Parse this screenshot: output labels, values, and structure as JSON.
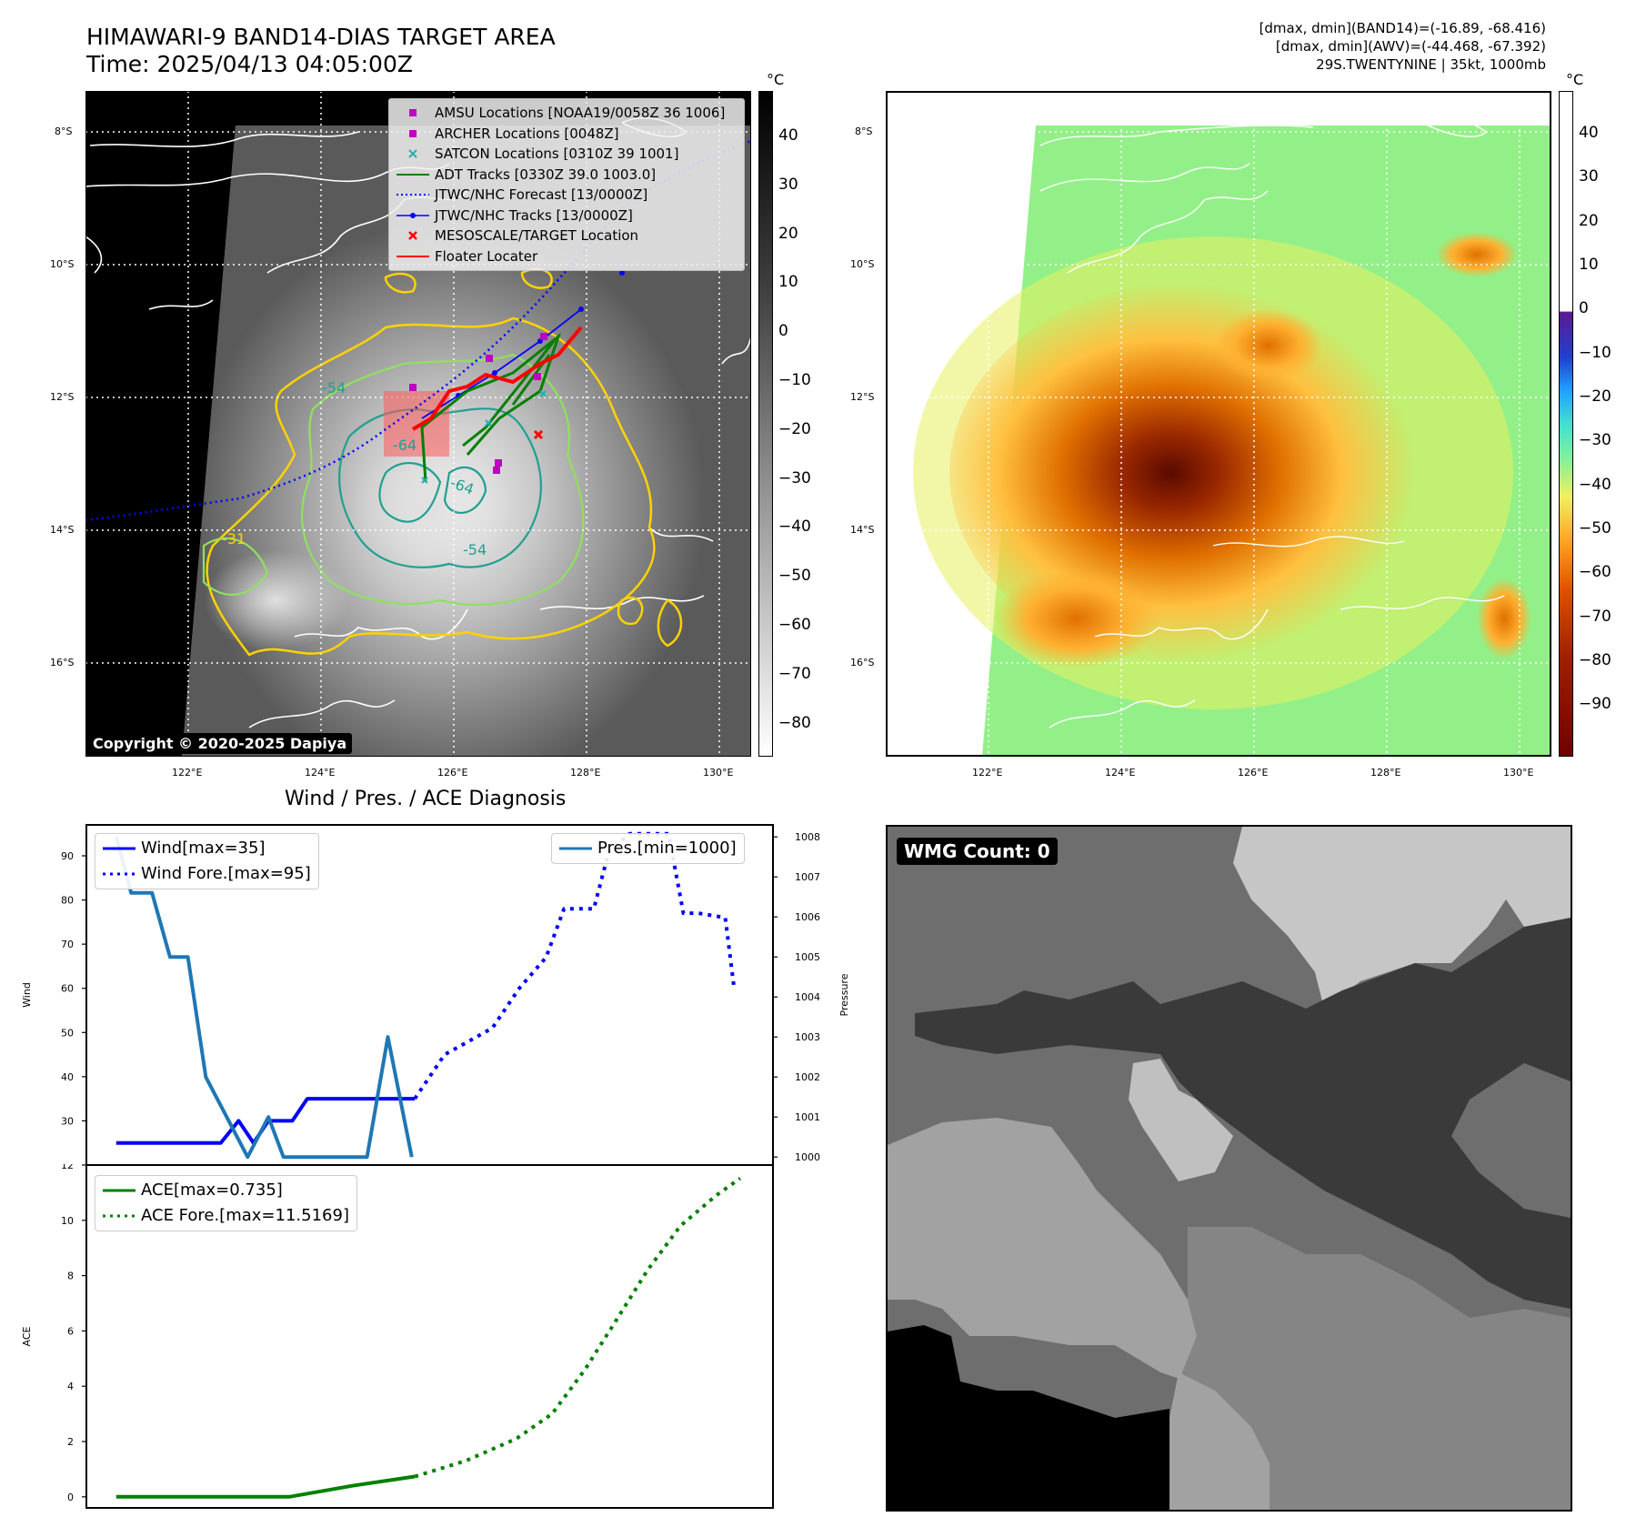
{
  "header": {
    "title_line1": "HIMAWARI-9 BAND14-DIAS TARGET AREA",
    "title_line2": "Time: 2025/04/13 04:05:00Z",
    "right_line1": "[dmax, dmin](BAND14)=(-16.89, -68.416)",
    "right_line2": "[dmax, dmin](AWV)=(-44.468, -67.392)",
    "right_line3": "29S.TWENTYNINE | 35kt, 1000mb"
  },
  "map": {
    "lat_labels": [
      "8°S",
      "10°S",
      "12°S",
      "14°S",
      "16°S"
    ],
    "lon_labels": [
      "122°E",
      "124°E",
      "126°E",
      "128°E",
      "130°E"
    ],
    "copyright": "Copyright © 2020-2025 Dapiya",
    "contour_labels": [
      "-54",
      "-64",
      "-64",
      "-54",
      "-31"
    ],
    "legend": [
      {
        "label": "AMSU Locations [NOAA19/0058Z 36 1006]",
        "symbol": "square",
        "color": "#c000c0"
      },
      {
        "label": "ARCHER Locations [0048Z]",
        "symbol": "square",
        "color": "#c000c0"
      },
      {
        "label": "SATCON Locations [0310Z 39 1001]",
        "symbol": "x",
        "color": "#20b0b0"
      },
      {
        "label": "ADT Tracks [0330Z 39.0 1003.0]",
        "symbol": "line",
        "color": "#008000"
      },
      {
        "label": "JTWC/NHC Forecast [13/0000Z]",
        "symbol": "dotted",
        "color": "#0000ff"
      },
      {
        "label": "JTWC/NHC Tracks [13/0000Z]",
        "symbol": "line-dot",
        "color": "#0000ff"
      },
      {
        "label": "MESOSCALE/TARGET Location",
        "symbol": "x",
        "color": "#ff0000"
      },
      {
        "label": "Floater Locater",
        "symbol": "line",
        "color": "#ff0000"
      }
    ]
  },
  "colorbar_gray": {
    "unit": "°C",
    "ticks": [
      "40",
      "30",
      "20",
      "10",
      "0",
      "−10",
      "−20",
      "−30",
      "−40",
      "−50",
      "−60",
      "−70",
      "−80"
    ]
  },
  "colorbar_color": {
    "unit": "°C",
    "ticks": [
      "40",
      "30",
      "20",
      "10",
      "0",
      "−10",
      "−20",
      "−30",
      "−40",
      "−50",
      "−60",
      "−70",
      "−80",
      "−90"
    ]
  },
  "diagnosis": {
    "title": "Wind / Pres. / ACE Diagnosis",
    "wmg": "WMG Count: 0"
  },
  "chart_data": [
    {
      "type": "line",
      "title": "Wind / Pres. / ACE Diagnosis",
      "ylabel": "Wind",
      "y2label": "Pressure",
      "ylim": [
        20,
        97
      ],
      "y2lim": [
        999.8,
        1008.3
      ],
      "yticks": [
        30,
        40,
        50,
        60,
        70,
        80,
        90
      ],
      "y2ticks": [
        1000,
        1001,
        1002,
        1003,
        1004,
        1005,
        1006,
        1007,
        1008
      ],
      "xlim": [
        0,
        23
      ],
      "series": [
        {
          "name": "Wind[max=35]",
          "axis": "left",
          "style": "solid",
          "color": "#0000ff",
          "x": [
            1,
            4.5,
            5.1,
            5.6,
            6.1,
            6.9,
            7.4,
            11
          ],
          "y": [
            25,
            25,
            30,
            25,
            30,
            30,
            35,
            35
          ]
        },
        {
          "name": "Wind Fore.[max=95]",
          "axis": "left",
          "style": "dotted",
          "color": "#0000ff",
          "x": [
            11,
            12,
            12.8,
            13.6,
            14.5,
            15.4,
            16,
            17,
            17.5,
            18.2,
            19.5,
            20,
            20.5,
            21.4,
            21.7
          ],
          "y": [
            35,
            45,
            48,
            51,
            60,
            67,
            78,
            78,
            91,
            95,
            95,
            77,
            77,
            76,
            60
          ]
        },
        {
          "name": "Pres.[min=1000]",
          "axis": "right",
          "style": "solid",
          "color": "#1f77b4",
          "x": [
            1,
            1.5,
            2.2,
            2.8,
            3.4,
            4,
            5.4,
            6.1,
            6.6,
            9.4,
            10.1,
            10.9
          ],
          "y": [
            1008,
            1006.6,
            1006.6,
            1005,
            1005,
            1002,
            1000,
            1001,
            1000,
            1000,
            1003,
            1000
          ]
        }
      ]
    },
    {
      "type": "line",
      "ylabel": "ACE",
      "ylim": [
        -0.4,
        12
      ],
      "yticks": [
        0,
        2,
        4,
        6,
        8,
        10,
        12
      ],
      "xlim": [
        0,
        23
      ],
      "series": [
        {
          "name": "ACE[max=0.735]",
          "style": "solid",
          "color": "#008000",
          "x": [
            1,
            6.8,
            8.9,
            11
          ],
          "y": [
            0,
            0,
            0.4,
            0.735
          ]
        },
        {
          "name": "ACE Fore.[max=11.5169]",
          "style": "dotted",
          "color": "#008000",
          "x": [
            11,
            12.7,
            14.4,
            15.6,
            16.7,
            17.7,
            18.8,
            19.9,
            21.1,
            21.9
          ],
          "y": [
            0.735,
            1.3,
            2.1,
            3.0,
            4.6,
            6.3,
            8.2,
            9.8,
            10.9,
            11.52
          ]
        }
      ]
    }
  ]
}
